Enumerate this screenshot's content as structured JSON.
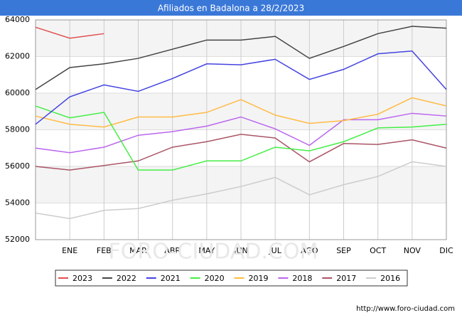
{
  "chart_data": {
    "type": "line",
    "title": "Afiliados en Badalona a 28/2/2023",
    "categories": [
      null,
      "ENE",
      "FEB",
      "MAR",
      "ABR",
      "MAY",
      "JUN",
      "JUL",
      "AGO",
      "SEP",
      "OCT",
      "NOV",
      "DIC"
    ],
    "ylim": [
      52000,
      64000
    ],
    "yticks": [
      52000,
      54000,
      56000,
      58000,
      60000,
      62000,
      64000
    ],
    "grid": true,
    "watermark": "FORO-CIUDAD.COM",
    "footer": "http://www.foro-ciudad.com",
    "series": [
      {
        "name": "2023",
        "color": "#e05050",
        "values": [
          63600,
          63000,
          63250,
          null,
          null,
          null,
          null,
          null,
          null,
          null,
          null,
          null,
          null
        ]
      },
      {
        "name": "2022",
        "color": "#444444",
        "values": [
          60200,
          61400,
          61600,
          61900,
          62400,
          62900,
          62900,
          63100,
          61900,
          62550,
          63250,
          63650,
          63550
        ]
      },
      {
        "name": "2021",
        "color": "#4444e0",
        "values": [
          58300,
          59800,
          60450,
          60100,
          60800,
          61600,
          61550,
          61850,
          60750,
          61300,
          62150,
          62300,
          60200
        ]
      },
      {
        "name": "2020",
        "color": "#44ee44",
        "values": [
          59300,
          58650,
          58950,
          55800,
          55800,
          56300,
          56300,
          57050,
          56850,
          57350,
          58100,
          58150,
          58300
        ]
      },
      {
        "name": "2019",
        "color": "#ffbb44",
        "values": [
          58750,
          58300,
          58150,
          58700,
          58700,
          58950,
          59650,
          58800,
          58350,
          58500,
          58850,
          59750,
          59300
        ]
      },
      {
        "name": "2018",
        "color": "#bb66ee",
        "values": [
          57000,
          56750,
          57050,
          57700,
          57900,
          58200,
          58700,
          58050,
          57150,
          58550,
          58550,
          58900,
          58750
        ]
      },
      {
        "name": "2017",
        "color": "#aa5566",
        "values": [
          56000,
          55800,
          56050,
          56300,
          57050,
          57350,
          57750,
          57550,
          56250,
          57250,
          57200,
          57450,
          57000
        ]
      },
      {
        "name": "2016",
        "color": "#cccccc",
        "values": [
          53450,
          53150,
          53600,
          53700,
          54150,
          54500,
          54900,
          55400,
          54450,
          55000,
          55450,
          56250,
          56000
        ]
      }
    ]
  }
}
